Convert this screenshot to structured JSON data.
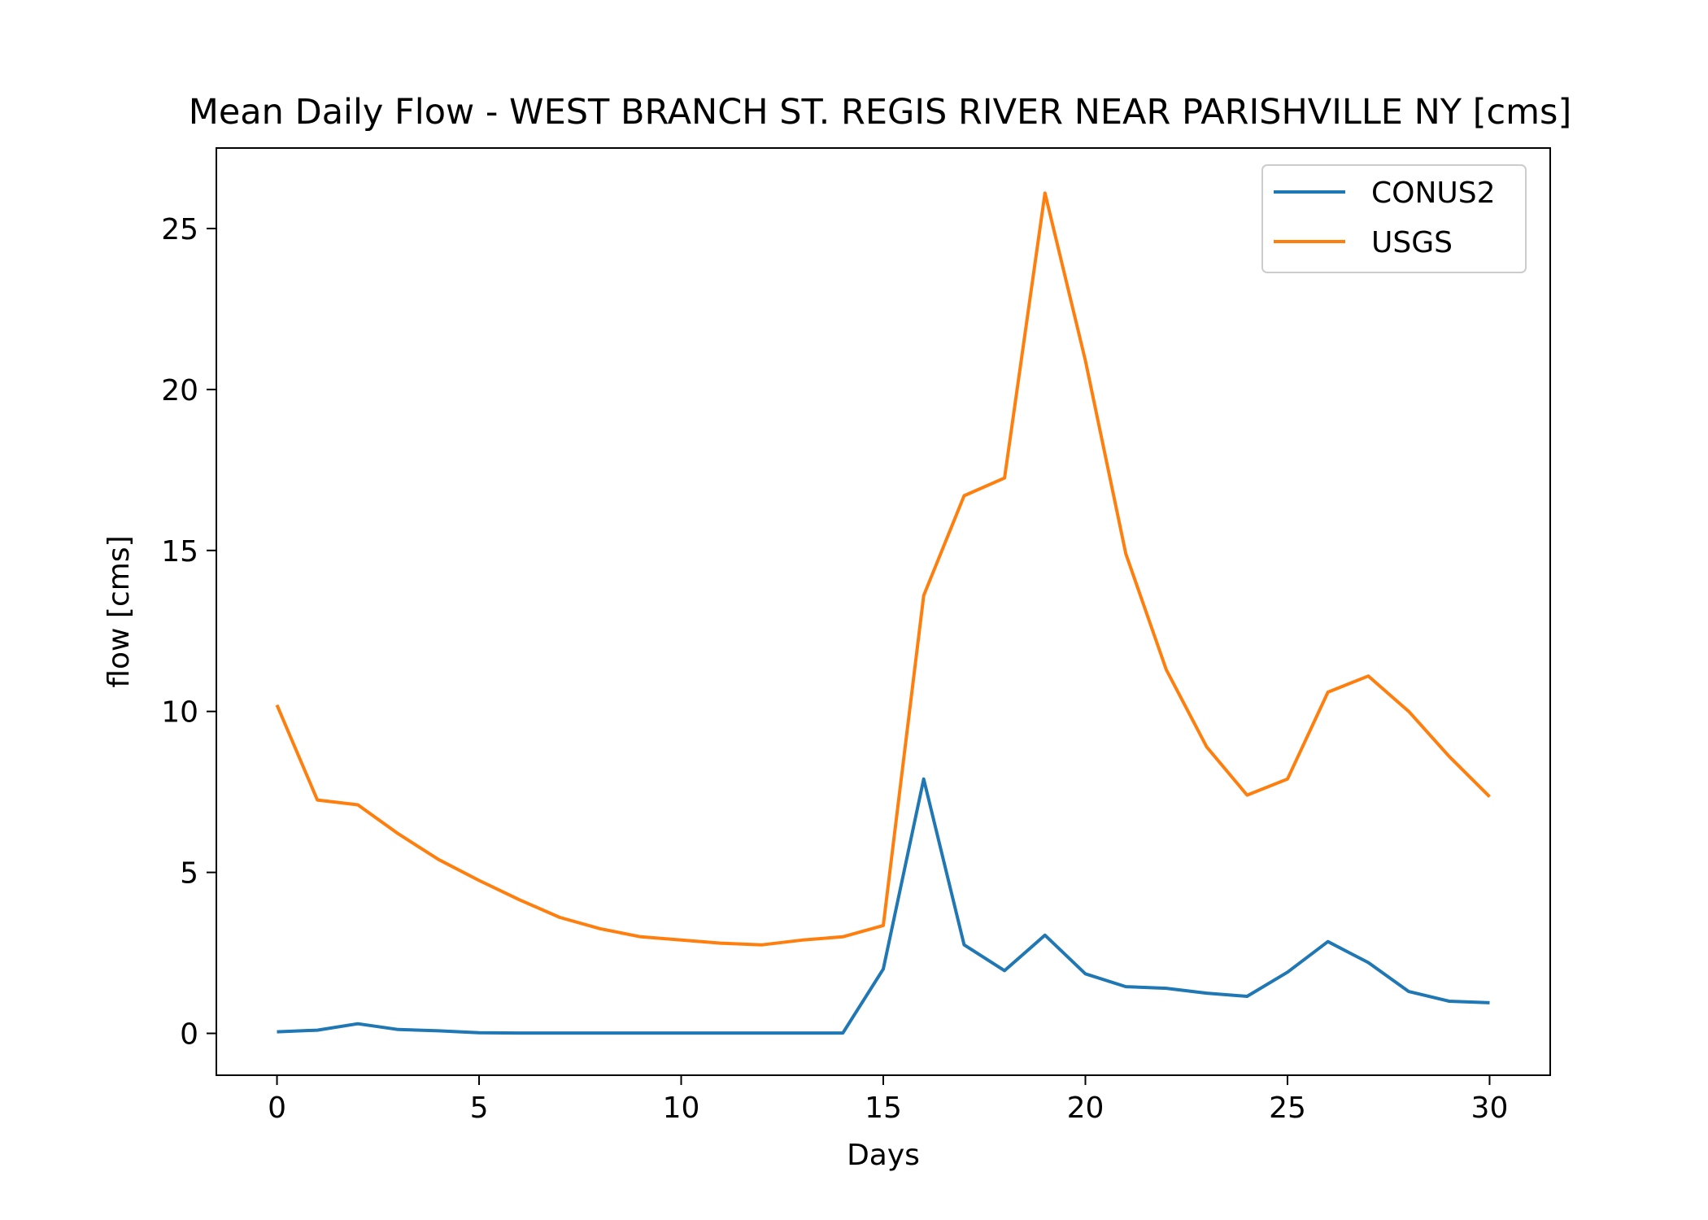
{
  "chart_data": {
    "type": "line",
    "title": "Mean Daily Flow - WEST BRANCH ST. REGIS RIVER NEAR PARISHVILLE NY [cms]",
    "xlabel": "Days",
    "ylabel": "flow [cms]",
    "xlim": [
      -1.5,
      31.5
    ],
    "ylim": [
      -1.3,
      27.5
    ],
    "x_ticks": [
      0,
      5,
      10,
      15,
      20,
      25,
      30
    ],
    "y_ticks": [
      0,
      5,
      10,
      15,
      20,
      25
    ],
    "grid": false,
    "legend_position": "top-right",
    "x": [
      0,
      1,
      2,
      3,
      4,
      5,
      6,
      7,
      8,
      9,
      10,
      11,
      12,
      13,
      14,
      15,
      16,
      17,
      18,
      19,
      20,
      21,
      22,
      23,
      24,
      25,
      26,
      27,
      28,
      29,
      30
    ],
    "series": [
      {
        "name": "CONUS2",
        "color": "#1f77b4",
        "values": [
          0.05,
          0.1,
          0.3,
          0.12,
          0.08,
          0.02,
          0.01,
          0.01,
          0.01,
          0.01,
          0.01,
          0.01,
          0.01,
          0.01,
          0.01,
          2.0,
          7.9,
          2.75,
          1.95,
          3.05,
          1.85,
          1.45,
          1.4,
          1.25,
          1.15,
          1.9,
          2.85,
          2.2,
          1.3,
          1.0,
          0.95
        ]
      },
      {
        "name": "USGS",
        "color": "#ff7f0e",
        "values": [
          10.2,
          7.25,
          7.1,
          6.2,
          5.4,
          4.75,
          4.15,
          3.6,
          3.25,
          3.0,
          2.9,
          2.8,
          2.75,
          2.9,
          3.0,
          3.35,
          13.6,
          16.7,
          17.25,
          26.1,
          20.9,
          14.9,
          11.3,
          8.9,
          7.4,
          7.9,
          10.6,
          11.1,
          10.0,
          8.6,
          7.35
        ]
      }
    ]
  }
}
